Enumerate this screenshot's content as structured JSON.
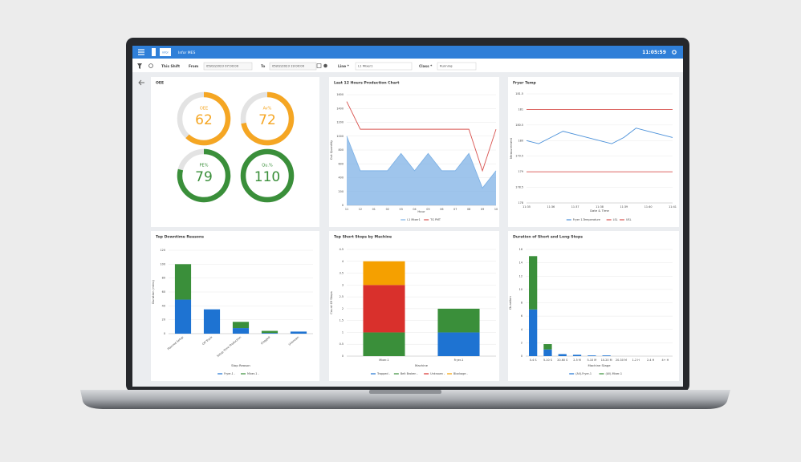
{
  "app": {
    "logo": "infor",
    "title": "Infor MES",
    "clock": "11:05:59"
  },
  "toolbar": {
    "shift": "This Shift",
    "from_label": "From",
    "from": "05/02/2023 07:00:00",
    "to_label": "To",
    "to": "05/02/2023 19:00:00",
    "line_label": "Line *",
    "line": "L1 Mixer1",
    "class_label": "Class *",
    "class": "Running"
  },
  "oee": {
    "title": "OEE",
    "gauges": [
      {
        "label": "OEE",
        "value": 62,
        "color": "#f5a623"
      },
      {
        "label": "Av%",
        "value": 72,
        "color": "#f5a623"
      },
      {
        "label": "PE%",
        "value": 79,
        "color": "#3a8f3a"
      },
      {
        "label": "Qu.%",
        "value": 110,
        "color": "#3a8f3a"
      }
    ]
  },
  "chart_data": [
    {
      "type": "line",
      "title": "Last 12 Hours Production Chart",
      "x_label": "Hour",
      "y_label": "Out Quantity",
      "categories": [
        "11",
        "12",
        "01",
        "02",
        "03",
        "04",
        "05",
        "06",
        "07",
        "08",
        "09",
        "10"
      ],
      "series": [
        {
          "name": "L1 Mixer1",
          "color": "#7fb2e5",
          "area": true,
          "values": [
            1000,
            500,
            500,
            500,
            750,
            500,
            750,
            500,
            500,
            750,
            250,
            500
          ]
        },
        {
          "name": "TG PMT",
          "color": "#d9534f",
          "values": [
            1500,
            1100,
            1100,
            1100,
            1100,
            1100,
            1100,
            1100,
            1100,
            1100,
            500,
            1100
          ]
        }
      ],
      "ylim": [
        0,
        1600
      ],
      "yticks": [
        0,
        200,
        400,
        600,
        800,
        1000,
        1200,
        1400,
        1600
      ],
      "grid": true,
      "legend": "bottom"
    },
    {
      "type": "line",
      "title": "Fryer Temp",
      "x_label": "Date & Time",
      "y_label": "Measurement",
      "categories": [
        "11:35",
        null,
        "11:36",
        null,
        "11:37",
        null,
        "11:38",
        null,
        "11:39",
        null,
        "11:40",
        null,
        "11:41"
      ],
      "series": [
        {
          "name": "Fryer 1-Temperature",
          "color": "#4a90d9",
          "values": [
            180.0,
            179.9,
            180.1,
            180.3,
            180.2,
            180.1,
            180.0,
            179.9,
            180.1,
            180.4,
            180.3,
            180.2,
            180.1
          ]
        },
        {
          "name": "LSL",
          "color": "#d9534f",
          "values": [
            179,
            179,
            179,
            179,
            179,
            179,
            179,
            179,
            179,
            179,
            179,
            179,
            179
          ]
        },
        {
          "name": "USL",
          "color": "#d9534f",
          "values": [
            181,
            181,
            181,
            181,
            181,
            181,
            181,
            181,
            181,
            181,
            181,
            181,
            181
          ]
        }
      ],
      "ylim": [
        178,
        181.5
      ],
      "yticks": [
        178,
        178.5,
        179,
        179.5,
        180,
        180.5,
        181,
        181.5
      ],
      "grid": true,
      "legend": "bottom"
    },
    {
      "type": "bar",
      "stacked": true,
      "title": "Top Downtime Reasons",
      "x_label": "Stop Reason",
      "y_label": "Duration (mins)",
      "categories": [
        "Planned Setup",
        "Off Track",
        "Setup Time Production",
        "Clogged",
        "Unknown"
      ],
      "series": [
        {
          "name": "Fryer-1 -",
          "color": "#1e73d2",
          "values": [
            49,
            35,
            8,
            1,
            3
          ]
        },
        {
          "name": "Mixer-1 -",
          "color": "#3a8f3a",
          "values": [
            51,
            0,
            9,
            3,
            0
          ]
        }
      ],
      "ylim": [
        0,
        120
      ],
      "yticks": [
        0,
        20,
        40,
        60,
        80,
        100,
        120
      ],
      "grid": true,
      "legend": "bottom"
    },
    {
      "type": "bar",
      "stacked": true,
      "title": "Top Short Stops by Machine",
      "x_label": "Machine",
      "y_label": "Count Of Stops",
      "categories": [
        "Mixer-1",
        "Fryer-1"
      ],
      "series": [
        {
          "name": "Trapped -",
          "color": "#1e73d2",
          "values": [
            0,
            1
          ]
        },
        {
          "name": "Belt Broken -",
          "color": "#3a8f3a",
          "values": [
            1,
            1
          ]
        },
        {
          "name": "Unknown -",
          "color": "#d9302c",
          "values": [
            2,
            0
          ]
        },
        {
          "name": "Blockage -",
          "color": "#f5a000",
          "values": [
            1,
            0
          ]
        }
      ],
      "ylim": [
        0,
        4.5
      ],
      "yticks": [
        0,
        0.5,
        1,
        1.5,
        2,
        2.5,
        3,
        3.5,
        4,
        4.5
      ],
      "grid": true,
      "legend": "bottom"
    },
    {
      "type": "bar",
      "stacked": true,
      "title": "Duration of Short and Long Stops",
      "x_label": "Machine Stage",
      "y_label": "Duration",
      "categories": [
        "0-4 S",
        "5-10 S",
        "20-60 S",
        "2-5 M",
        "5-10 M",
        "10-20 M",
        "20-30 M",
        "1-2 H",
        "2-4 H",
        "4+ H"
      ],
      "series": [
        {
          "name": "(All)-Fryer-1",
          "color": "#1e73d2",
          "values": [
            7,
            1,
            0.3,
            0.2,
            0.1,
            0.1,
            0,
            0,
            0,
            0
          ]
        },
        {
          "name": "(All)-Mixer-1",
          "color": "#3a8f3a",
          "values": [
            8,
            0.8,
            0,
            0,
            0,
            0,
            0,
            0,
            0,
            0
          ]
        }
      ],
      "ylim": [
        0,
        16
      ],
      "yticks": [
        0,
        2,
        4,
        6,
        8,
        10,
        12,
        14,
        16
      ],
      "grid": true,
      "legend": "bottom"
    }
  ]
}
